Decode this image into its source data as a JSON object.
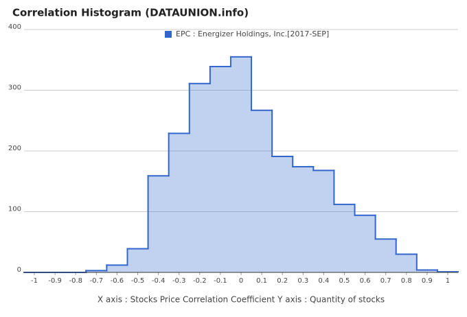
{
  "chart_data": {
    "type": "histogram",
    "title": "Correlation Histogram (DATAUNION.info)",
    "x_label": "X axis : Stocks Price Correlation Coefficient  Y axis : Quantity of stocks",
    "legend": "top",
    "series": [
      {
        "name": "EPC : Energizer Holdings, Inc.[2017-SEP]",
        "color": "#3366cc",
        "values": [
          0,
          0,
          0,
          3,
          12,
          39,
          159,
          229,
          311,
          339,
          355,
          267,
          191,
          174,
          168,
          112,
          94,
          55,
          30,
          4,
          1
        ]
      }
    ],
    "bins": [
      -1.05,
      -0.95,
      -0.85,
      -0.75,
      -0.65,
      -0.55,
      -0.45,
      -0.35,
      -0.25,
      -0.15,
      -0.05,
      0.05,
      0.15,
      0.25,
      0.35,
      0.45,
      0.55,
      0.65,
      0.75,
      0.85,
      0.95,
      1.05
    ],
    "xlim": [
      -1.05,
      1.05
    ],
    "xticks": [
      -1,
      -0.9,
      -0.8,
      -0.7,
      -0.6,
      -0.5,
      -0.4,
      -0.3,
      -0.2,
      -0.1,
      0,
      0.1,
      0.2,
      0.3,
      0.4,
      0.5,
      0.6,
      0.7,
      0.8,
      0.9,
      1
    ],
    "ylim": [
      0,
      400
    ],
    "yticks": [
      0,
      100,
      200,
      300,
      400
    ],
    "grid": true
  }
}
